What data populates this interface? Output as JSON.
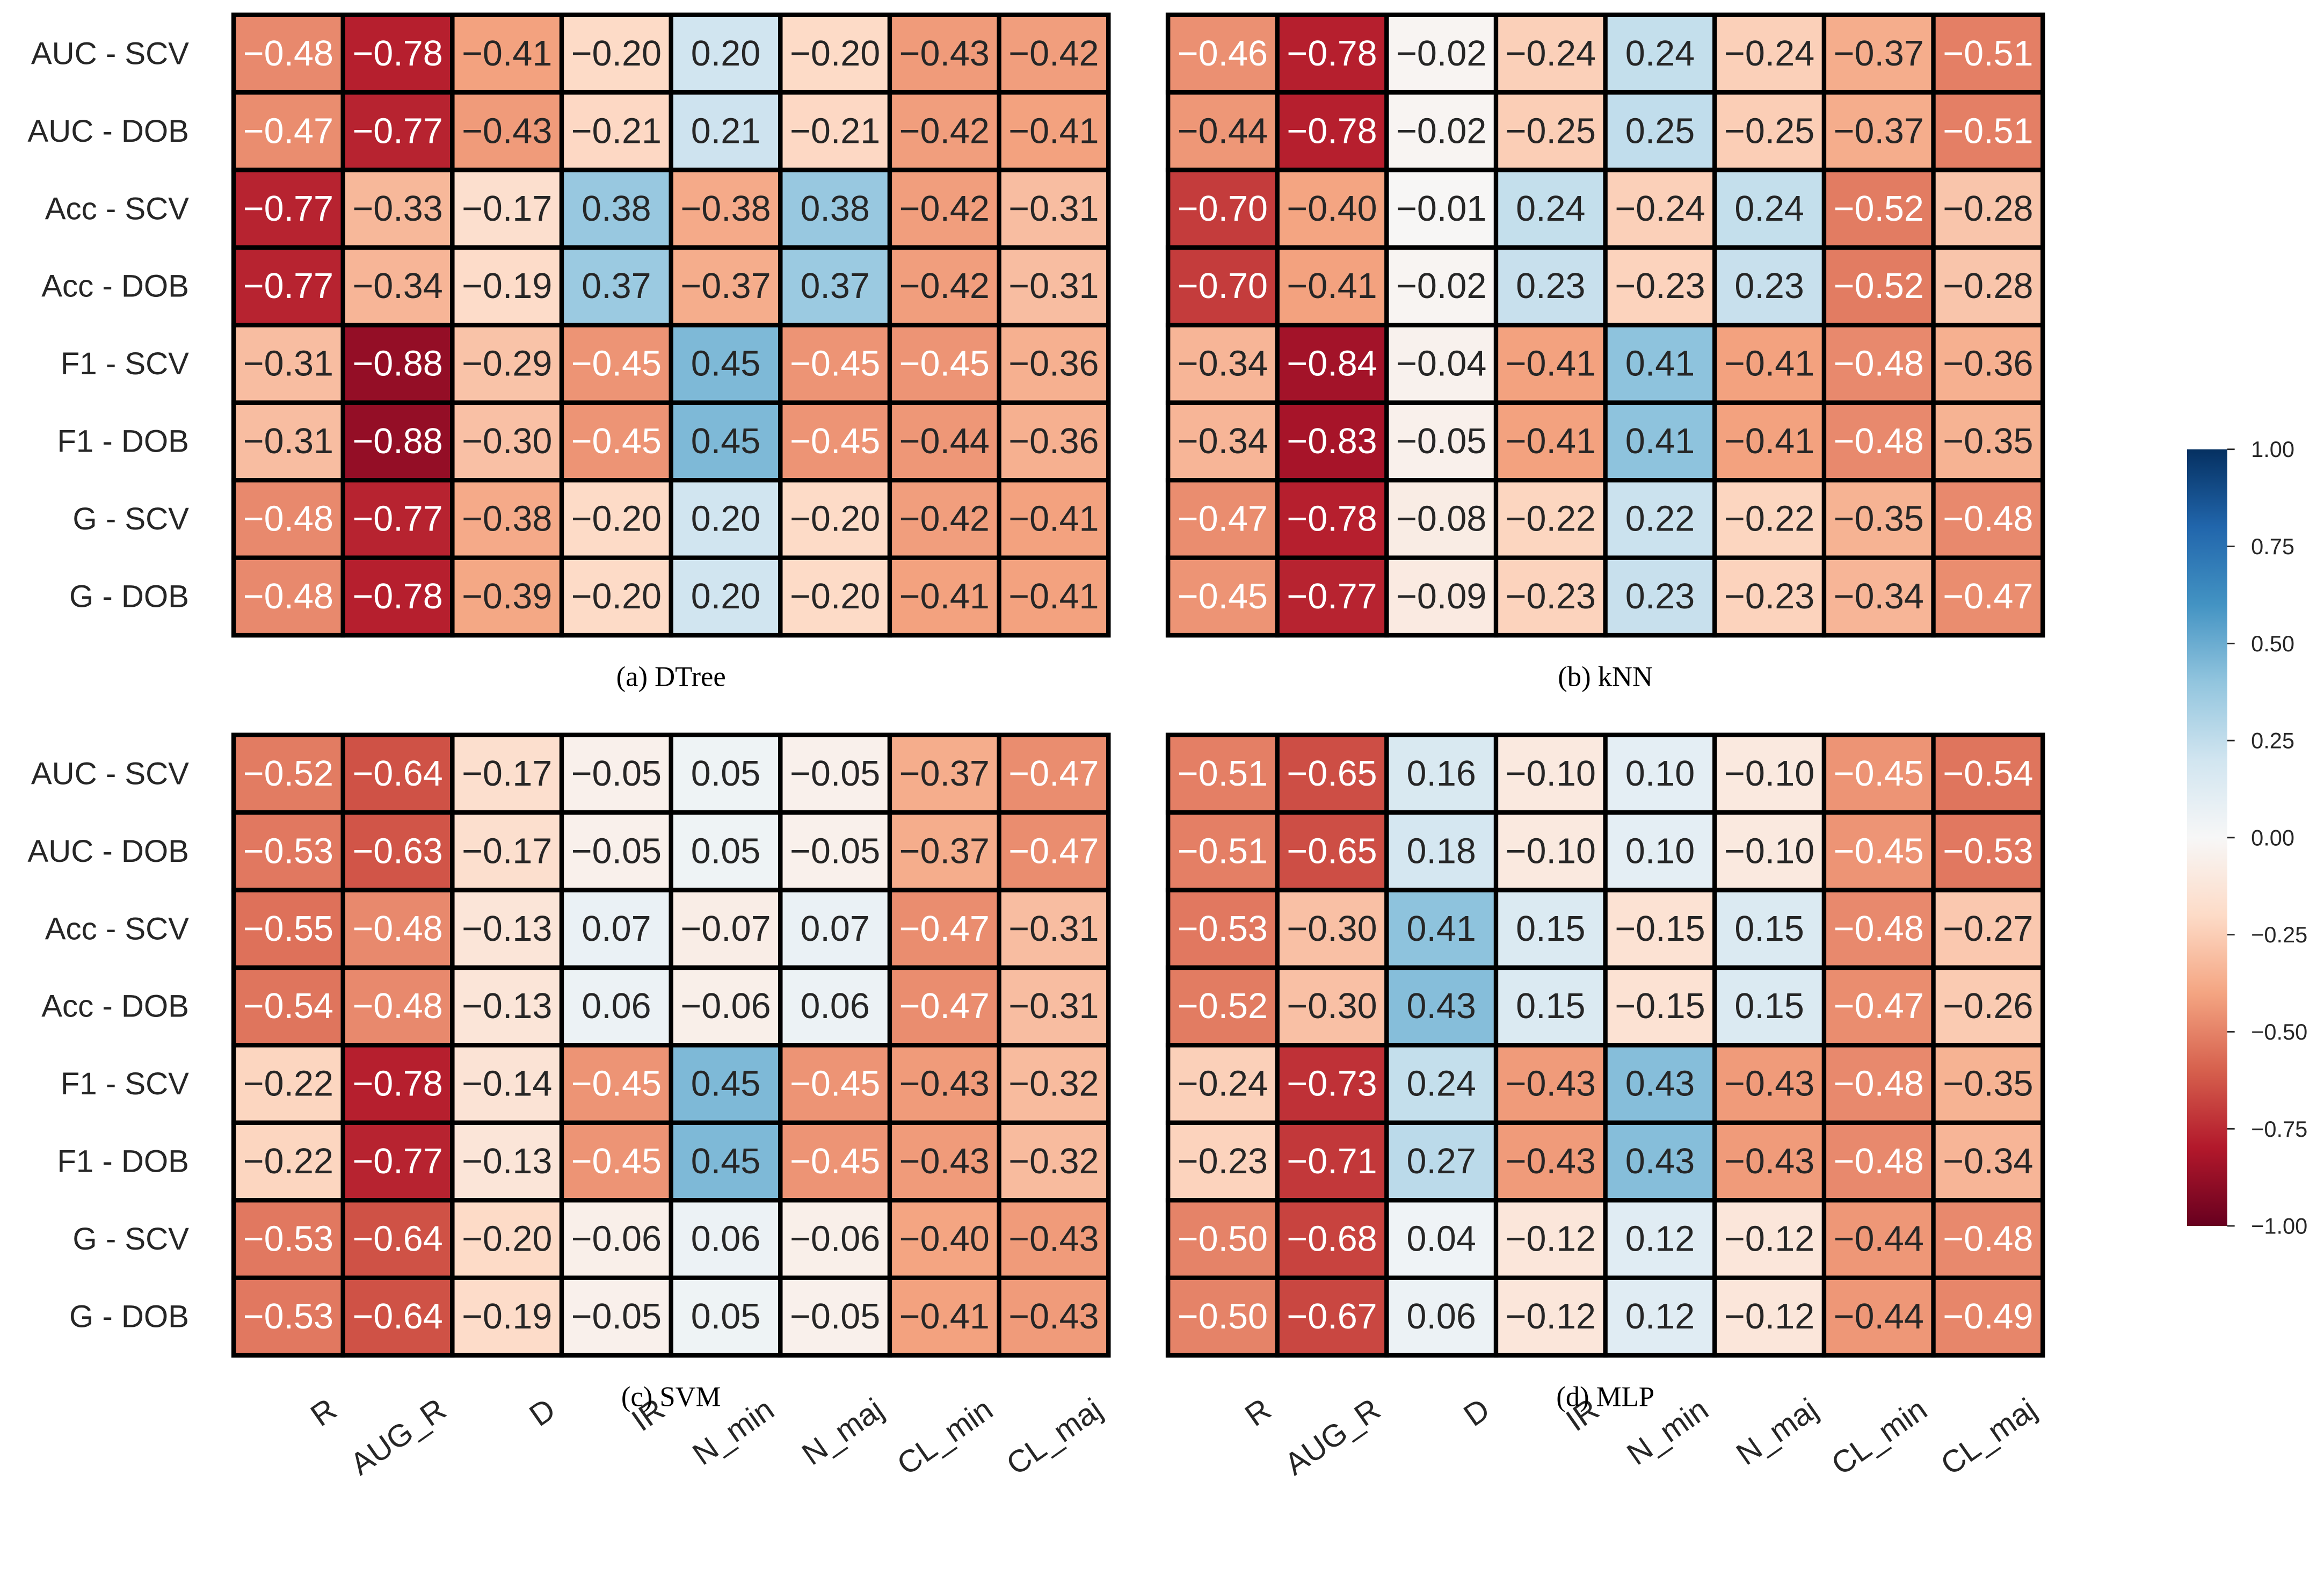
{
  "chart_data": [
    {
      "type": "heatmap",
      "caption": "(a) DTree",
      "rows": [
        "AUC - SCV",
        "AUC - DOB",
        "Acc - SCV",
        "Acc - DOB",
        "F1 - SCV",
        "F1 - DOB",
        "G - SCV",
        "G - DOB"
      ],
      "values": [
        [
          -0.48,
          -0.78,
          -0.41,
          -0.2,
          0.2,
          -0.2,
          -0.43,
          -0.42
        ],
        [
          -0.47,
          -0.77,
          -0.43,
          -0.21,
          0.21,
          -0.21,
          -0.42,
          -0.41
        ],
        [
          -0.77,
          -0.33,
          -0.17,
          0.38,
          -0.38,
          0.38,
          -0.42,
          -0.31
        ],
        [
          -0.77,
          -0.34,
          -0.19,
          0.37,
          -0.37,
          0.37,
          -0.42,
          -0.31
        ],
        [
          -0.31,
          -0.88,
          -0.29,
          -0.45,
          0.45,
          -0.45,
          -0.45,
          -0.36
        ],
        [
          -0.31,
          -0.88,
          -0.3,
          -0.45,
          0.45,
          -0.45,
          -0.44,
          -0.36
        ],
        [
          -0.48,
          -0.77,
          -0.38,
          -0.2,
          0.2,
          -0.2,
          -0.42,
          -0.41
        ],
        [
          -0.48,
          -0.78,
          -0.39,
          -0.2,
          0.2,
          -0.2,
          -0.41,
          -0.41
        ]
      ],
      "value_labels": [
        [
          "−0.48",
          "−0.78",
          "−0.41",
          "−0.20",
          "0.20",
          "−0.20",
          "−0.43",
          "−0.42"
        ],
        [
          "−0.47",
          "−0.77",
          "−0.43",
          "−0.21",
          "0.21",
          "−0.21",
          "−0.42",
          "−0.41"
        ],
        [
          "−0.77",
          "−0.33",
          "−0.17",
          "0.38",
          "−0.38",
          "0.38",
          "−0.42",
          "−0.31"
        ],
        [
          "−0.77",
          "−0.34",
          "−0.19",
          "0.37",
          "−0.37",
          "0.37",
          "−0.42",
          "−0.31"
        ],
        [
          "−0.31",
          "−0.88",
          "−0.29",
          "−0.45",
          "0.45",
          "−0.45",
          "−0.45",
          "−0.36"
        ],
        [
          "−0.31",
          "−0.88",
          "−0.30",
          "−0.45",
          "0.45",
          "−0.45",
          "−0.44",
          "−0.36"
        ],
        [
          "−0.48",
          "−0.77",
          "−0.38",
          "−0.20",
          "0.20",
          "−0.20",
          "−0.42",
          "−0.41"
        ],
        [
          "−0.48",
          "−0.78",
          "−0.39",
          "−0.20",
          "0.20",
          "−0.20",
          "−0.41",
          "−0.41"
        ]
      ]
    },
    {
      "type": "heatmap",
      "caption": "(b) kNN",
      "values": [
        [
          -0.46,
          -0.78,
          -0.02,
          -0.24,
          0.24,
          -0.24,
          -0.37,
          -0.51
        ],
        [
          -0.44,
          -0.78,
          -0.02,
          -0.25,
          0.25,
          -0.25,
          -0.37,
          -0.51
        ],
        [
          -0.7,
          -0.4,
          -0.01,
          0.24,
          -0.24,
          0.24,
          -0.52,
          -0.28
        ],
        [
          -0.7,
          -0.41,
          -0.02,
          0.23,
          -0.23,
          0.23,
          -0.52,
          -0.28
        ],
        [
          -0.34,
          -0.84,
          -0.04,
          -0.41,
          0.41,
          -0.41,
          -0.48,
          -0.36
        ],
        [
          -0.34,
          -0.83,
          -0.05,
          -0.41,
          0.41,
          -0.41,
          -0.48,
          -0.35
        ],
        [
          -0.47,
          -0.78,
          -0.08,
          -0.22,
          0.22,
          -0.22,
          -0.35,
          -0.48
        ],
        [
          -0.45,
          -0.77,
          -0.09,
          -0.23,
          0.23,
          -0.23,
          -0.34,
          -0.47
        ]
      ],
      "value_labels": [
        [
          "−0.46",
          "−0.78",
          "−0.02",
          "−0.24",
          "0.24",
          "−0.24",
          "−0.37",
          "−0.51"
        ],
        [
          "−0.44",
          "−0.78",
          "−0.02",
          "−0.25",
          "0.25",
          "−0.25",
          "−0.37",
          "−0.51"
        ],
        [
          "−0.70",
          "−0.40",
          "−0.01",
          "0.24",
          "−0.24",
          "0.24",
          "−0.52",
          "−0.28"
        ],
        [
          "−0.70",
          "−0.41",
          "−0.02",
          "0.23",
          "−0.23",
          "0.23",
          "−0.52",
          "−0.28"
        ],
        [
          "−0.34",
          "−0.84",
          "−0.04",
          "−0.41",
          "0.41",
          "−0.41",
          "−0.48",
          "−0.36"
        ],
        [
          "−0.34",
          "−0.83",
          "−0.05",
          "−0.41",
          "0.41",
          "−0.41",
          "−0.48",
          "−0.35"
        ],
        [
          "−0.47",
          "−0.78",
          "−0.08",
          "−0.22",
          "0.22",
          "−0.22",
          "−0.35",
          "−0.48"
        ],
        [
          "−0.45",
          "−0.77",
          "−0.09",
          "−0.23",
          "0.23",
          "−0.23",
          "−0.34",
          "−0.47"
        ]
      ]
    },
    {
      "type": "heatmap",
      "caption": "(c) SVM",
      "rows": [
        "AUC - SCV",
        "AUC - DOB",
        "Acc - SCV",
        "Acc - DOB",
        "F1 - SCV",
        "F1 - DOB",
        "G - SCV",
        "G - DOB"
      ],
      "columns": [
        "R",
        "AUG_R",
        "D",
        "IR",
        "N_min",
        "N_maj",
        "CL_min",
        "CL_maj"
      ],
      "values": [
        [
          -0.52,
          -0.64,
          -0.17,
          -0.05,
          0.05,
          -0.05,
          -0.37,
          -0.47
        ],
        [
          -0.53,
          -0.63,
          -0.17,
          -0.05,
          0.05,
          -0.05,
          -0.37,
          -0.47
        ],
        [
          -0.55,
          -0.48,
          -0.13,
          0.07,
          -0.07,
          0.07,
          -0.47,
          -0.31
        ],
        [
          -0.54,
          -0.48,
          -0.13,
          0.06,
          -0.06,
          0.06,
          -0.47,
          -0.31
        ],
        [
          -0.22,
          -0.78,
          -0.14,
          -0.45,
          0.45,
          -0.45,
          -0.43,
          -0.32
        ],
        [
          -0.22,
          -0.77,
          -0.13,
          -0.45,
          0.45,
          -0.45,
          -0.43,
          -0.32
        ],
        [
          -0.53,
          -0.64,
          -0.2,
          -0.06,
          0.06,
          -0.06,
          -0.4,
          -0.43
        ],
        [
          -0.53,
          -0.64,
          -0.19,
          -0.05,
          0.05,
          -0.05,
          -0.41,
          -0.43
        ]
      ],
      "value_labels": [
        [
          "−0.52",
          "−0.64",
          "−0.17",
          "−0.05",
          "0.05",
          "−0.05",
          "−0.37",
          "−0.47"
        ],
        [
          "−0.53",
          "−0.63",
          "−0.17",
          "−0.05",
          "0.05",
          "−0.05",
          "−0.37",
          "−0.47"
        ],
        [
          "−0.55",
          "−0.48",
          "−0.13",
          "0.07",
          "−0.07",
          "0.07",
          "−0.47",
          "−0.31"
        ],
        [
          "−0.54",
          "−0.48",
          "−0.13",
          "0.06",
          "−0.06",
          "0.06",
          "−0.47",
          "−0.31"
        ],
        [
          "−0.22",
          "−0.78",
          "−0.14",
          "−0.45",
          "0.45",
          "−0.45",
          "−0.43",
          "−0.32"
        ],
        [
          "−0.22",
          "−0.77",
          "−0.13",
          "−0.45",
          "0.45",
          "−0.45",
          "−0.43",
          "−0.32"
        ],
        [
          "−0.53",
          "−0.64",
          "−0.20",
          "−0.06",
          "0.06",
          "−0.06",
          "−0.40",
          "−0.43"
        ],
        [
          "−0.53",
          "−0.64",
          "−0.19",
          "−0.05",
          "0.05",
          "−0.05",
          "−0.41",
          "−0.43"
        ]
      ]
    },
    {
      "type": "heatmap",
      "caption": "(d) MLP",
      "columns": [
        "R",
        "AUG_R",
        "D",
        "IR",
        "N_min",
        "N_maj",
        "CL_min",
        "CL_maj"
      ],
      "values": [
        [
          -0.51,
          -0.65,
          0.16,
          -0.1,
          0.1,
          -0.1,
          -0.45,
          -0.54
        ],
        [
          -0.51,
          -0.65,
          0.18,
          -0.1,
          0.1,
          -0.1,
          -0.45,
          -0.53
        ],
        [
          -0.53,
          -0.3,
          0.41,
          0.15,
          -0.15,
          0.15,
          -0.48,
          -0.27
        ],
        [
          -0.52,
          -0.3,
          0.43,
          0.15,
          -0.15,
          0.15,
          -0.47,
          -0.26
        ],
        [
          -0.24,
          -0.73,
          0.24,
          -0.43,
          0.43,
          -0.43,
          -0.48,
          -0.35
        ],
        [
          -0.23,
          -0.71,
          0.27,
          -0.43,
          0.43,
          -0.43,
          -0.48,
          -0.34
        ],
        [
          -0.5,
          -0.68,
          0.04,
          -0.12,
          0.12,
          -0.12,
          -0.44,
          -0.48
        ],
        [
          -0.5,
          -0.67,
          0.06,
          -0.12,
          0.12,
          -0.12,
          -0.44,
          -0.49
        ]
      ],
      "value_labels": [
        [
          "−0.51",
          "−0.65",
          "0.16",
          "−0.10",
          "0.10",
          "−0.10",
          "−0.45",
          "−0.54"
        ],
        [
          "−0.51",
          "−0.65",
          "0.18",
          "−0.10",
          "0.10",
          "−0.10",
          "−0.45",
          "−0.53"
        ],
        [
          "−0.53",
          "−0.30",
          "0.41",
          "0.15",
          "−0.15",
          "0.15",
          "−0.48",
          "−0.27"
        ],
        [
          "−0.52",
          "−0.30",
          "0.43",
          "0.15",
          "−0.15",
          "0.15",
          "−0.47",
          "−0.26"
        ],
        [
          "−0.24",
          "−0.73",
          "0.24",
          "−0.43",
          "0.43",
          "−0.43",
          "−0.48",
          "−0.35"
        ],
        [
          "−0.23",
          "−0.71",
          "0.27",
          "−0.43",
          "0.43",
          "−0.43",
          "−0.48",
          "−0.34"
        ],
        [
          "−0.50",
          "−0.68",
          "0.04",
          "−0.12",
          "0.12",
          "−0.12",
          "−0.44",
          "−0.48"
        ],
        [
          "−0.50",
          "−0.67",
          "0.06",
          "−0.12",
          "0.12",
          "−0.12",
          "−0.44",
          "−0.49"
        ]
      ]
    },
    {
      "type": "colorbar",
      "ylim": [
        -1,
        1
      ],
      "yticks": [
        {
          "value": 1,
          "label": "1.00"
        },
        {
          "value": 0.75,
          "label": "0.75"
        },
        {
          "value": 0.5,
          "label": "0.50"
        },
        {
          "value": 0.25,
          "label": "0.25"
        },
        {
          "value": 0,
          "label": "0.00"
        },
        {
          "value": -0.25,
          "label": "−0.25"
        },
        {
          "value": -0.5,
          "label": "−0.50"
        },
        {
          "value": -0.75,
          "label": "−0.75"
        },
        {
          "value": -1,
          "label": "−1.00"
        }
      ],
      "colormap": [
        "#67001f",
        "#b2182b",
        "#d6604d",
        "#f4a582",
        "#fddbc7",
        "#f7f7f7",
        "#d1e5f0",
        "#92c5de",
        "#4393c3",
        "#2166ac",
        "#053061"
      ]
    }
  ]
}
